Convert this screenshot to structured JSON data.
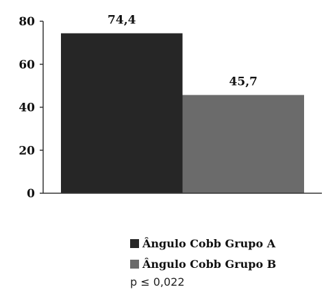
{
  "chart_data": {
    "type": "bar",
    "categories": [
      "Ângulo Cobb Grupo A",
      "Ângulo Cobb Grupo B"
    ],
    "values": [
      74.4,
      45.7
    ],
    "value_labels": [
      "74,4",
      "45,7"
    ],
    "colors": [
      "#262626",
      "#6b6b6b"
    ],
    "ylim": [
      0,
      80
    ],
    "yticks": [
      0,
      20,
      40,
      60,
      80
    ],
    "ytick_labels": [
      "0",
      "20",
      "40",
      "60",
      "80"
    ],
    "grid": false,
    "legend_position": "bottom",
    "legend": [
      {
        "label": "Ângulo Cobb Grupo A",
        "color": "#262626"
      },
      {
        "label": "Ângulo Cobb Grupo B",
        "color": "#6b6b6b"
      }
    ]
  },
  "note": "p ≤ 0,022"
}
